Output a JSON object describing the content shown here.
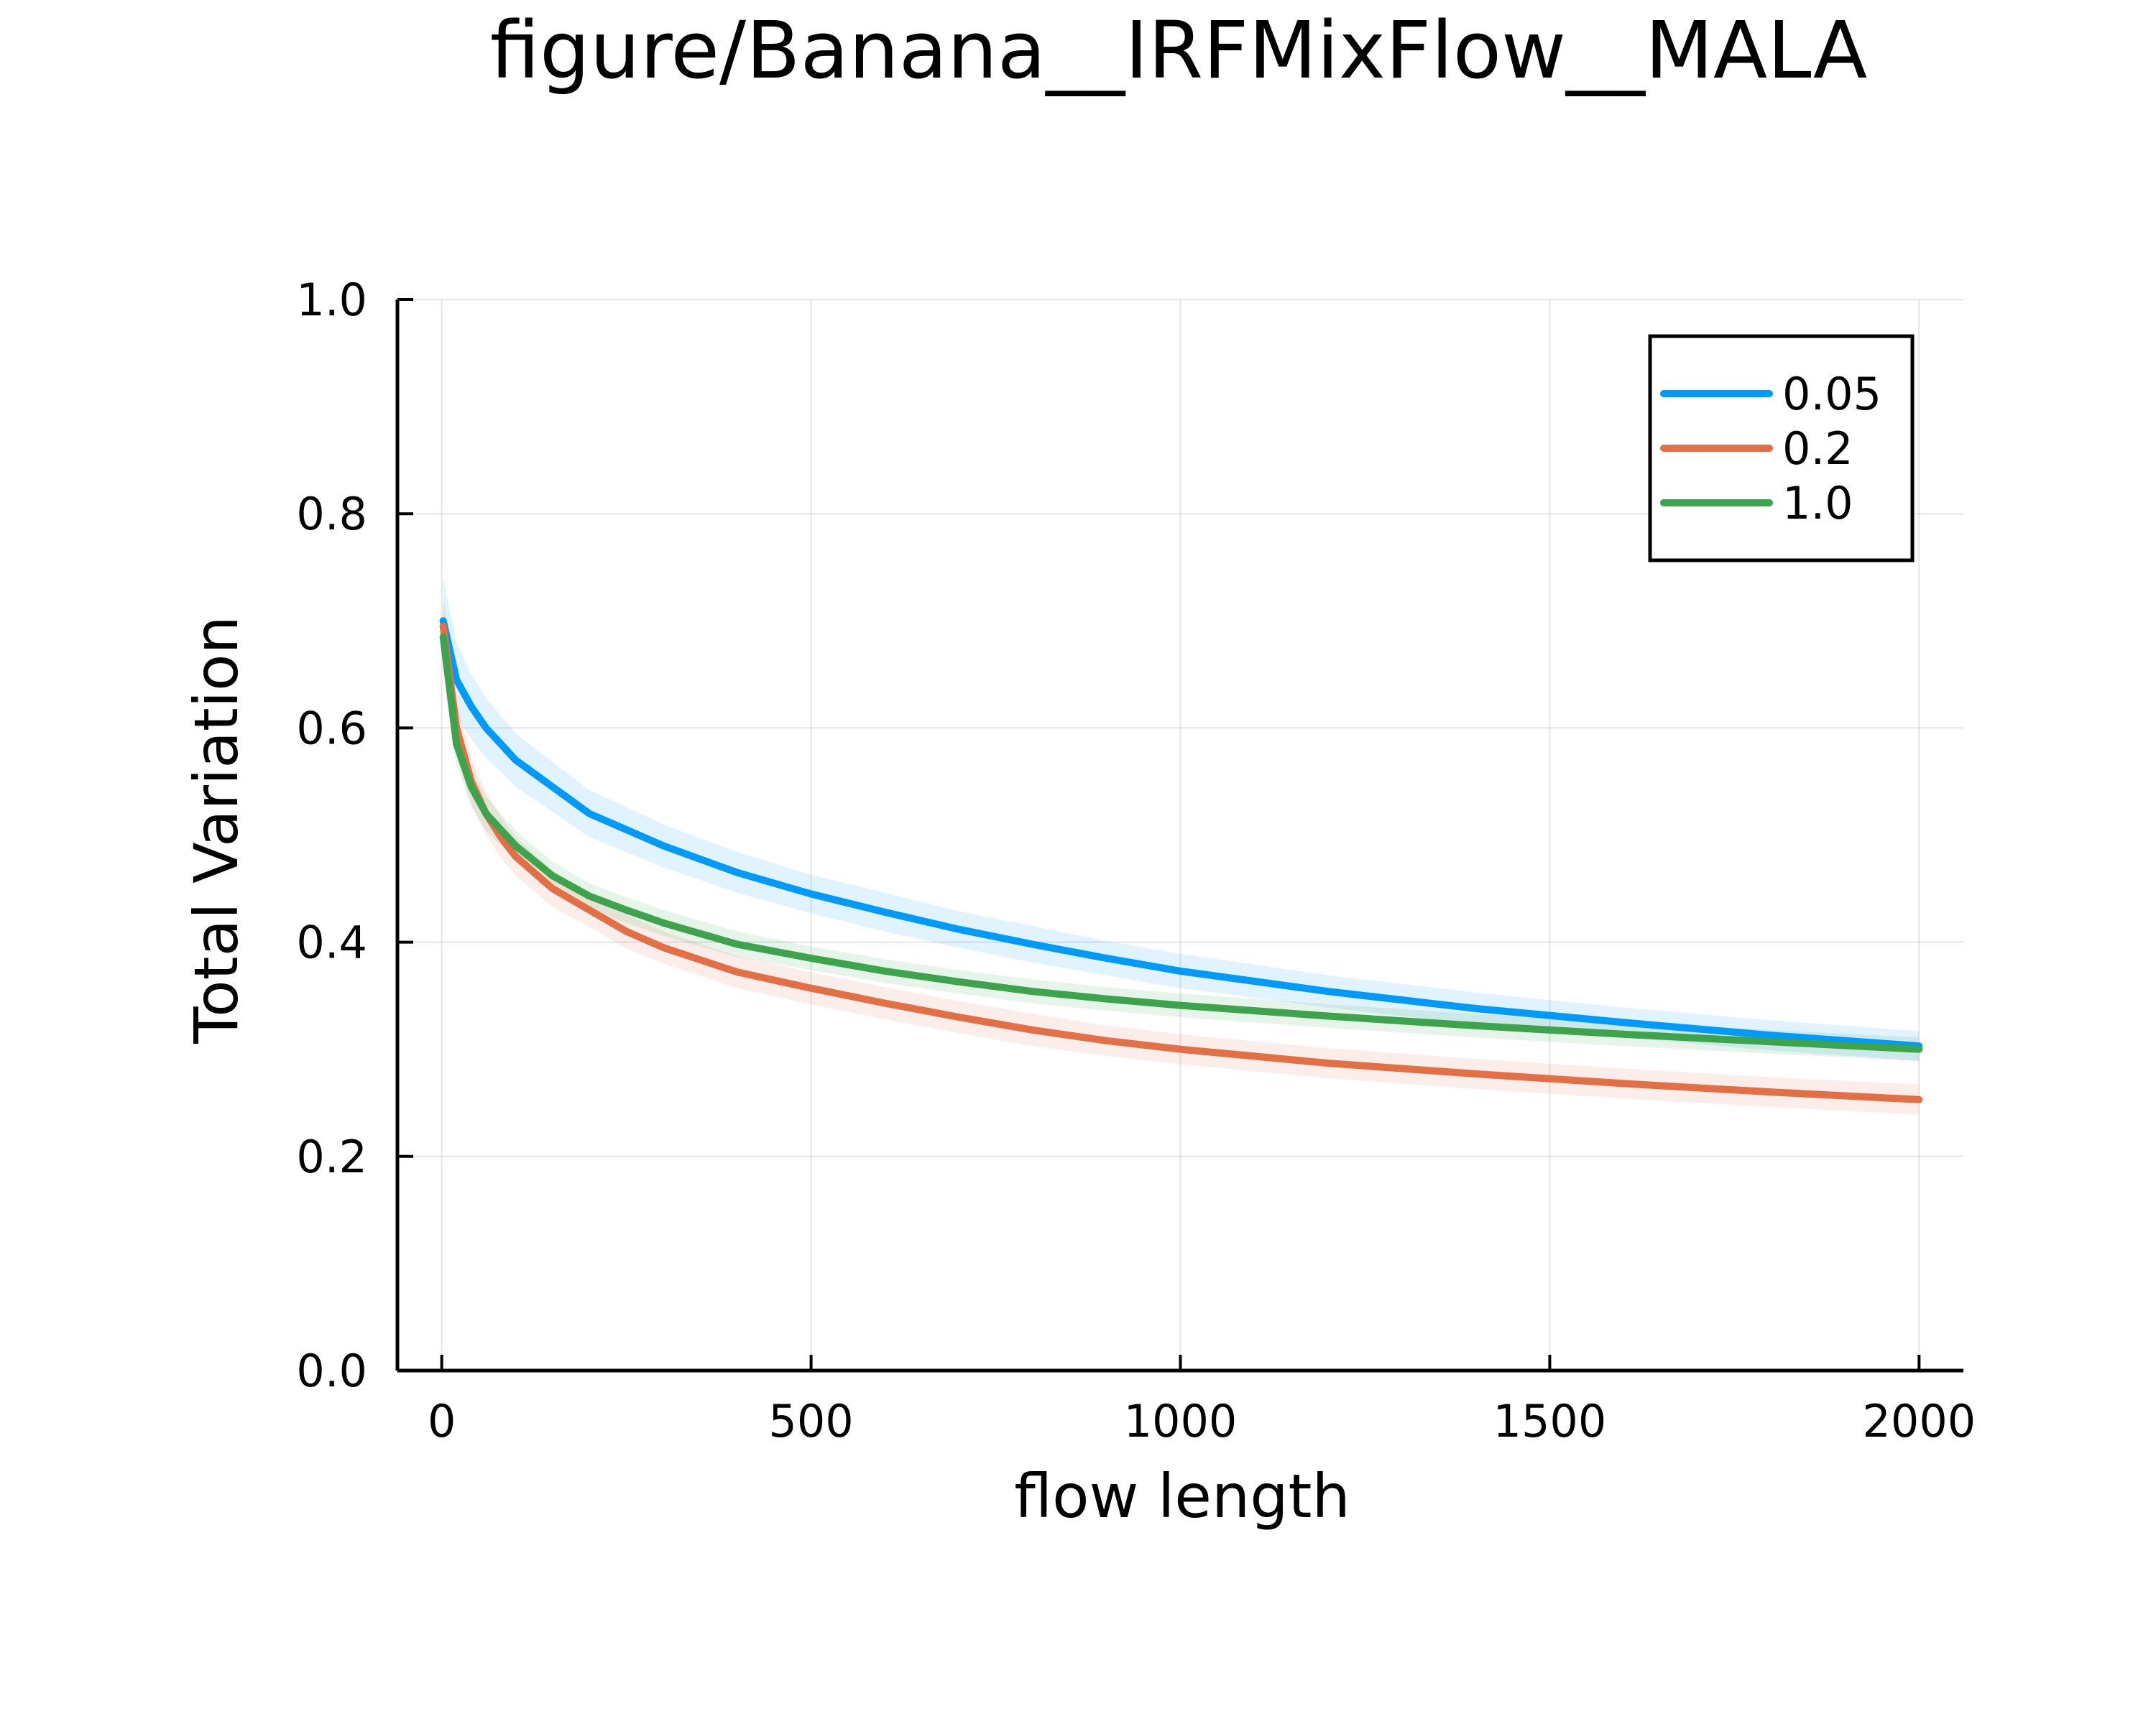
{
  "chart_data": {
    "type": "line",
    "title": "figure/Banana__IRFMixFlow__MALA",
    "xlabel": "flow length",
    "ylabel": "Total Variation",
    "xlim": [
      -60,
      2060
    ],
    "ylim": [
      0,
      1
    ],
    "xticks": [
      0,
      500,
      1000,
      1500,
      2000
    ],
    "xtick_labels": [
      "0",
      "500",
      "1000",
      "1500",
      "2000"
    ],
    "yticks": [
      0,
      0.2,
      0.4,
      0.6,
      0.8,
      1.0
    ],
    "ytick_labels": [
      "0.0",
      "0.2",
      "0.4",
      "0.6",
      "0.8",
      "1.0"
    ],
    "grid": true,
    "legend_position": "top-right",
    "x": [
      2,
      20,
      40,
      60,
      80,
      100,
      150,
      200,
      250,
      300,
      400,
      500,
      600,
      700,
      800,
      900,
      1000,
      1200,
      1400,
      1600,
      1800,
      2000
    ],
    "series": [
      {
        "name": "0.05",
        "color": "#009AFA",
        "values": [
          0.7,
          0.645,
          0.62,
          0.6,
          0.585,
          0.57,
          0.545,
          0.52,
          0.505,
          0.49,
          0.465,
          0.445,
          0.428,
          0.412,
          0.398,
          0.385,
          0.373,
          0.354,
          0.338,
          0.325,
          0.313,
          0.303
        ],
        "band": [
          0.04,
          0.035,
          0.03,
          0.028,
          0.026,
          0.025,
          0.023,
          0.022,
          0.021,
          0.02,
          0.019,
          0.018,
          0.018,
          0.017,
          0.017,
          0.016,
          0.016,
          0.015,
          0.015,
          0.014,
          0.014,
          0.014
        ]
      },
      {
        "name": "0.2",
        "color": "#E26F46",
        "values": [
          0.695,
          0.6,
          0.55,
          0.52,
          0.498,
          0.48,
          0.45,
          0.43,
          0.41,
          0.395,
          0.372,
          0.357,
          0.343,
          0.33,
          0.318,
          0.308,
          0.3,
          0.287,
          0.277,
          0.268,
          0.26,
          0.253
        ],
        "band": [
          0.03,
          0.025,
          0.022,
          0.02,
          0.019,
          0.018,
          0.017,
          0.016,
          0.016,
          0.015,
          0.015,
          0.015,
          0.015,
          0.015,
          0.015,
          0.014,
          0.014,
          0.014,
          0.014,
          0.014,
          0.014,
          0.014
        ]
      },
      {
        "name": "1.0",
        "color": "#3DA44D",
        "values": [
          0.685,
          0.585,
          0.545,
          0.52,
          0.505,
          0.49,
          0.462,
          0.443,
          0.43,
          0.418,
          0.398,
          0.385,
          0.373,
          0.363,
          0.354,
          0.347,
          0.341,
          0.331,
          0.322,
          0.314,
          0.307,
          0.3
        ],
        "band": [
          0.03,
          0.02,
          0.018,
          0.016,
          0.015,
          0.014,
          0.013,
          0.012,
          0.012,
          0.012,
          0.012,
          0.011,
          0.011,
          0.011,
          0.011,
          0.011,
          0.011,
          0.011,
          0.011,
          0.011,
          0.011,
          0.011
        ]
      }
    ]
  }
}
